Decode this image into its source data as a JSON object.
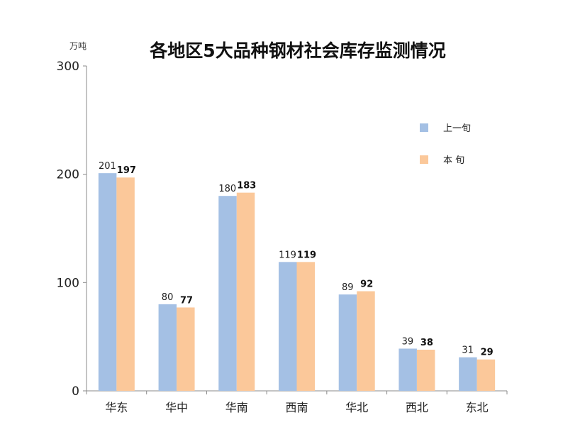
{
  "chart_data": {
    "type": "bar",
    "title": "各地区5大品种钢材社会库存监测情况",
    "unit_label": "万吨",
    "categories": [
      "华东",
      "华中",
      "华南",
      "西南",
      "华北",
      "西北",
      "东北"
    ],
    "series": [
      {
        "name": "上一旬",
        "color": "#a4c0e4",
        "values": [
          201,
          80,
          180,
          119,
          89,
          39,
          31
        ],
        "label_style": "normal"
      },
      {
        "name": "本 旬",
        "color": "#fbc89a",
        "values": [
          197,
          77,
          183,
          119,
          92,
          38,
          29
        ],
        "label_style": "bold"
      }
    ],
    "ylim": [
      0,
      300
    ],
    "yticks": [
      0,
      100,
      200,
      300
    ],
    "grid": false,
    "legend_position": "right"
  }
}
